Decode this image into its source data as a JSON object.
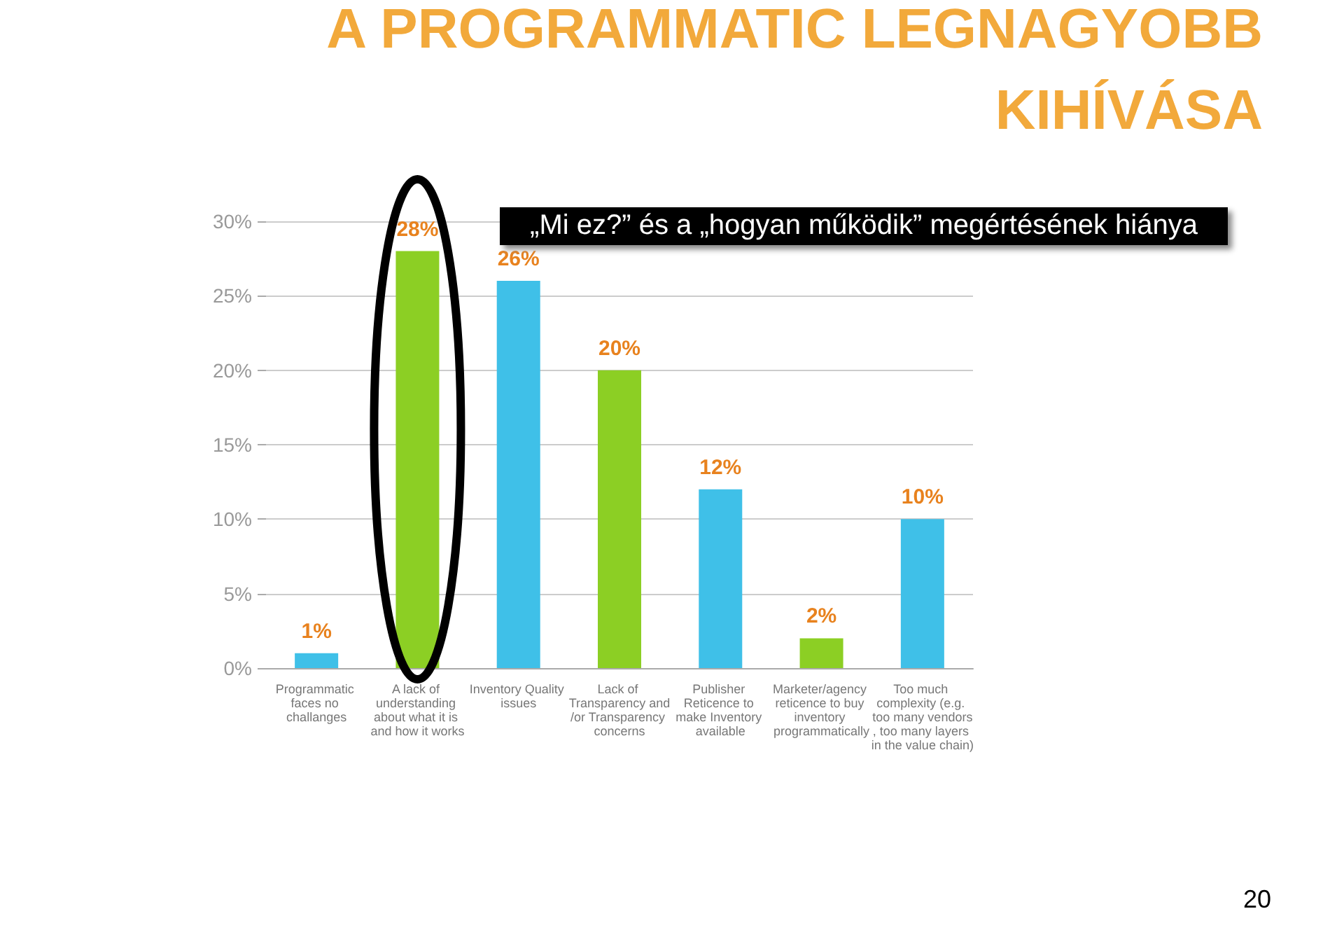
{
  "chart_data": {
    "type": "bar",
    "title": "A PROGRAMMATIC LEGNAGYOBB KIHÍVÁSA",
    "categories": [
      "Programmatic faces no challanges",
      "A lack of understanding about what it is and how it works",
      "Inventory Quality issues",
      "Lack of Transparency and/or Transparency concerns",
      "Publisher Reticence to make Inventory available",
      "Marketer/agency reticence to buy inventory programmatically",
      "Too much complexity (e.g. too many vendors, too many layers in the value chain)"
    ],
    "values": [
      1,
      28,
      26,
      20,
      12,
      2,
      10
    ],
    "colors": [
      "#3fc0e8",
      "#8ccf24",
      "#3fc0e8",
      "#8ccf24",
      "#3fc0e8",
      "#8ccf24",
      "#3fc0e8"
    ],
    "value_labels": [
      "1%",
      "28%",
      "26%",
      "20%",
      "12%",
      "2%",
      "10%"
    ],
    "ylim": [
      0,
      30
    ],
    "yticks": [
      {
        "value": 0,
        "label": "0%"
      },
      {
        "value": 5,
        "label": "5%"
      },
      {
        "value": 10,
        "label": "10%"
      },
      {
        "value": 15,
        "label": "15%"
      },
      {
        "value": 20,
        "label": "20%"
      },
      {
        "value": 25,
        "label": "25%"
      },
      {
        "value": 30,
        "label": "30%"
      }
    ],
    "grid": "y",
    "annotations": [
      "„Mi ez?” és a „hogyan működik” megértésének hiánya",
      "20"
    ]
  }
}
